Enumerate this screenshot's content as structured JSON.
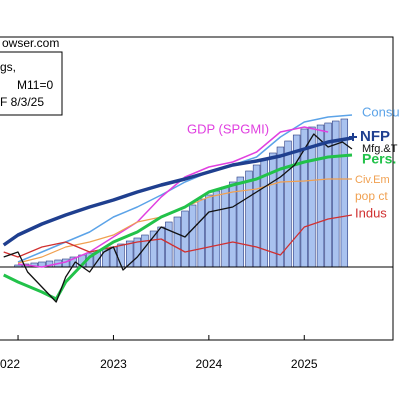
{
  "chart_data": {
    "type": "line",
    "annotations": [
      "owser.com",
      "gs,",
      "M11=0",
      "F 8/3/25",
      "pop ct"
    ],
    "xlim": [
      2021.79,
      2025.93
    ],
    "xticks": [
      {
        "value": 2022,
        "label": "022"
      },
      2023,
      2024,
      2025
    ],
    "ylim": [
      -7.3,
      23.0
    ],
    "hline": 0,
    "bars": {
      "color": "#a9c2ef",
      "edge_color": "#2a3a80",
      "x": [
        2022,
        2022.08,
        2022.17,
        2022.25,
        2022.33,
        2022.42,
        2022.5,
        2022.58,
        2022.67,
        2022.75,
        2022.83,
        2022.92,
        2023,
        2023.08,
        2023.17,
        2023.25,
        2023.33,
        2023.42,
        2023.5,
        2023.58,
        2023.67,
        2023.75,
        2023.83,
        2023.92,
        2024,
        2024.08,
        2024.17,
        2024.25,
        2024.33,
        2024.42,
        2024.5,
        2024.58,
        2024.67,
        2024.75,
        2024.83,
        2024.92,
        2025,
        2025.08,
        2025.17,
        2025.25,
        2025.33,
        2025.42
      ],
      "values": [
        0.2,
        0.3,
        0.4,
        0.5,
        0.6,
        0.7,
        0.8,
        1.0,
        1.2,
        1.4,
        1.6,
        1.8,
        2.0,
        2.3,
        2.6,
        2.9,
        3.2,
        3.6,
        4.0,
        4.5,
        5.0,
        5.6,
        6.2,
        6.8,
        7.2,
        7.6,
        8.0,
        8.5,
        9.0,
        9.6,
        10.2,
        10.8,
        11.4,
        12.0,
        12.6,
        13.2,
        13.8,
        14.0,
        14.2,
        14.4,
        14.6,
        14.8
      ]
    },
    "series": [
      {
        "name": "Consu",
        "color": "#5ba3e8",
        "width": 1.5,
        "x": [
          2022,
          2022.25,
          2022.5,
          2022.75,
          2023,
          2023.25,
          2023.5,
          2023.75,
          2024,
          2024.25,
          2024.5,
          2024.75,
          2025,
          2025.25,
          2025.5
        ],
        "values": [
          0.5,
          1.5,
          2.5,
          3.5,
          5.0,
          6.0,
          7.2,
          8.5,
          9.5,
          10.2,
          11.0,
          13.0,
          14.5,
          15.0,
          15.2
        ]
      },
      {
        "name": "GDP (SPGMI)",
        "color": "#e040e0",
        "width": 1.5,
        "x": [
          2022,
          2022.25,
          2022.5,
          2022.75,
          2023,
          2023.25,
          2023.5,
          2023.75,
          2024,
          2024.25,
          2024.5,
          2024.75,
          2025,
          2025.25
        ],
        "values": [
          0.3,
          0.0,
          0.5,
          1.5,
          3.0,
          4.5,
          7.0,
          9.0,
          10.0,
          10.5,
          11.5,
          13.5,
          14.0,
          13.5
        ]
      },
      {
        "name": "Civ.Em",
        "color": "#f0a050",
        "width": 1.2,
        "x": [
          2022,
          2022.25,
          2022.5,
          2022.75,
          2023,
          2023.25,
          2023.5,
          2023.75,
          2024,
          2024.25,
          2024.5,
          2024.75,
          2025,
          2025.25,
          2025.5
        ],
        "values": [
          0.4,
          1.0,
          2.0,
          2.5,
          3.2,
          4.5,
          5.0,
          6.0,
          7.0,
          7.5,
          7.8,
          8.5,
          8.6,
          8.8,
          8.8
        ]
      },
      {
        "name": "Indus",
        "color": "#d03030",
        "width": 1.3,
        "x": [
          2021.85,
          2022,
          2022.25,
          2022.5,
          2022.75,
          2023,
          2023.25,
          2023.5,
          2023.75,
          2024,
          2024.25,
          2024.5,
          2024.75,
          2025,
          2025.25,
          2025.5
        ],
        "values": [
          1.5,
          1.0,
          2.0,
          2.5,
          1.5,
          2.0,
          2.5,
          2.8,
          1.5,
          2.0,
          2.5,
          2.0,
          1.2,
          4.0,
          4.8,
          5.2
        ]
      },
      {
        "name": "Pers.",
        "color": "#22c24a",
        "width": 3,
        "x": [
          2021.85,
          2022,
          2022.25,
          2022.4,
          2022.5,
          2022.75,
          2023,
          2023.25,
          2023.5,
          2023.75,
          2024,
          2024.25,
          2024.5,
          2024.75,
          2025,
          2025.25,
          2025.5
        ],
        "values": [
          -0.8,
          -1.5,
          -2.5,
          -3.2,
          -1.5,
          1.0,
          2.5,
          3.5,
          5.0,
          6.0,
          7.5,
          8.2,
          8.8,
          9.8,
          10.5,
          11.0,
          11.2
        ]
      },
      {
        "name": "Mfg.&T",
        "color": "#111111",
        "width": 1.3,
        "x": [
          2021.85,
          2022,
          2022.1,
          2022.25,
          2022.4,
          2022.5,
          2022.6,
          2022.75,
          2022.9,
          2023,
          2023.1,
          2023.25,
          2023.5,
          2023.75,
          2024,
          2024.25,
          2024.5,
          2024.75,
          2024.9,
          2025.1,
          2025.25,
          2025.4,
          2025.5
        ],
        "values": [
          1.0,
          1.5,
          -0.5,
          -2.0,
          -3.5,
          -1.0,
          0.5,
          -0.5,
          1.5,
          2.0,
          -0.3,
          1.0,
          4.0,
          3.0,
          5.5,
          6.0,
          7.5,
          9.0,
          10.2,
          13.3,
          12.0,
          12.5,
          11.8
        ]
      },
      {
        "name": "NFP",
        "color": "#1f3f8f",
        "width": 3.5,
        "x": [
          2021.85,
          2022,
          2022.25,
          2022.5,
          2022.75,
          2023,
          2023.25,
          2023.5,
          2023.75,
          2024,
          2024.25,
          2024.5,
          2024.75,
          2025,
          2025.25,
          2025.5
        ],
        "values": [
          2.2,
          3.2,
          4.3,
          5.2,
          6.0,
          6.7,
          7.5,
          8.2,
          8.8,
          9.5,
          10.2,
          10.6,
          11.1,
          11.8,
          12.5,
          12.9
        ]
      }
    ]
  }
}
